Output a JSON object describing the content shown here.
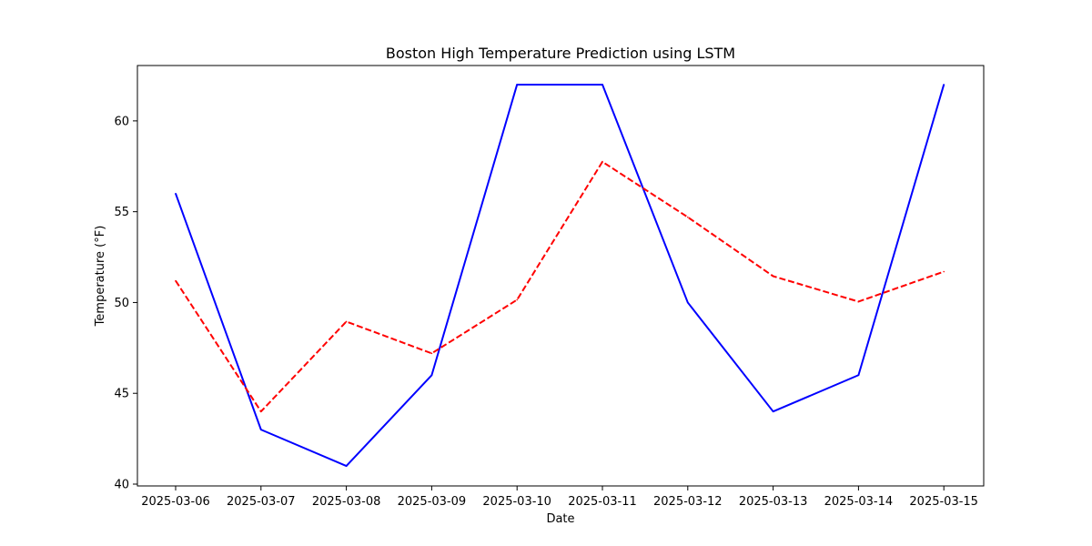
{
  "chart_data": {
    "type": "line",
    "title": "Boston High Temperature Prediction using LSTM",
    "xlabel": "Date",
    "ylabel": "Temperature (°F)",
    "categories": [
      "2025-03-06",
      "2025-03-07",
      "2025-03-08",
      "2025-03-09",
      "2025-03-10",
      "2025-03-11",
      "2025-03-12",
      "2025-03-13",
      "2025-03-14",
      "2025-03-15"
    ],
    "ylim": [
      39.9,
      63.05
    ],
    "yticks": [
      40,
      45,
      50,
      55,
      60
    ],
    "grid": false,
    "series": [
      {
        "color": "#0000ff",
        "style": "solid",
        "values": [
          56,
          43,
          41,
          46,
          62,
          62,
          50,
          44,
          46,
          62
        ]
      },
      {
        "color": "#ff0000",
        "style": "dashed",
        "values": [
          51.2,
          44.0,
          48.95,
          47.2,
          50.15,
          57.75,
          54.7,
          51.45,
          50.05,
          51.7
        ]
      }
    ]
  }
}
